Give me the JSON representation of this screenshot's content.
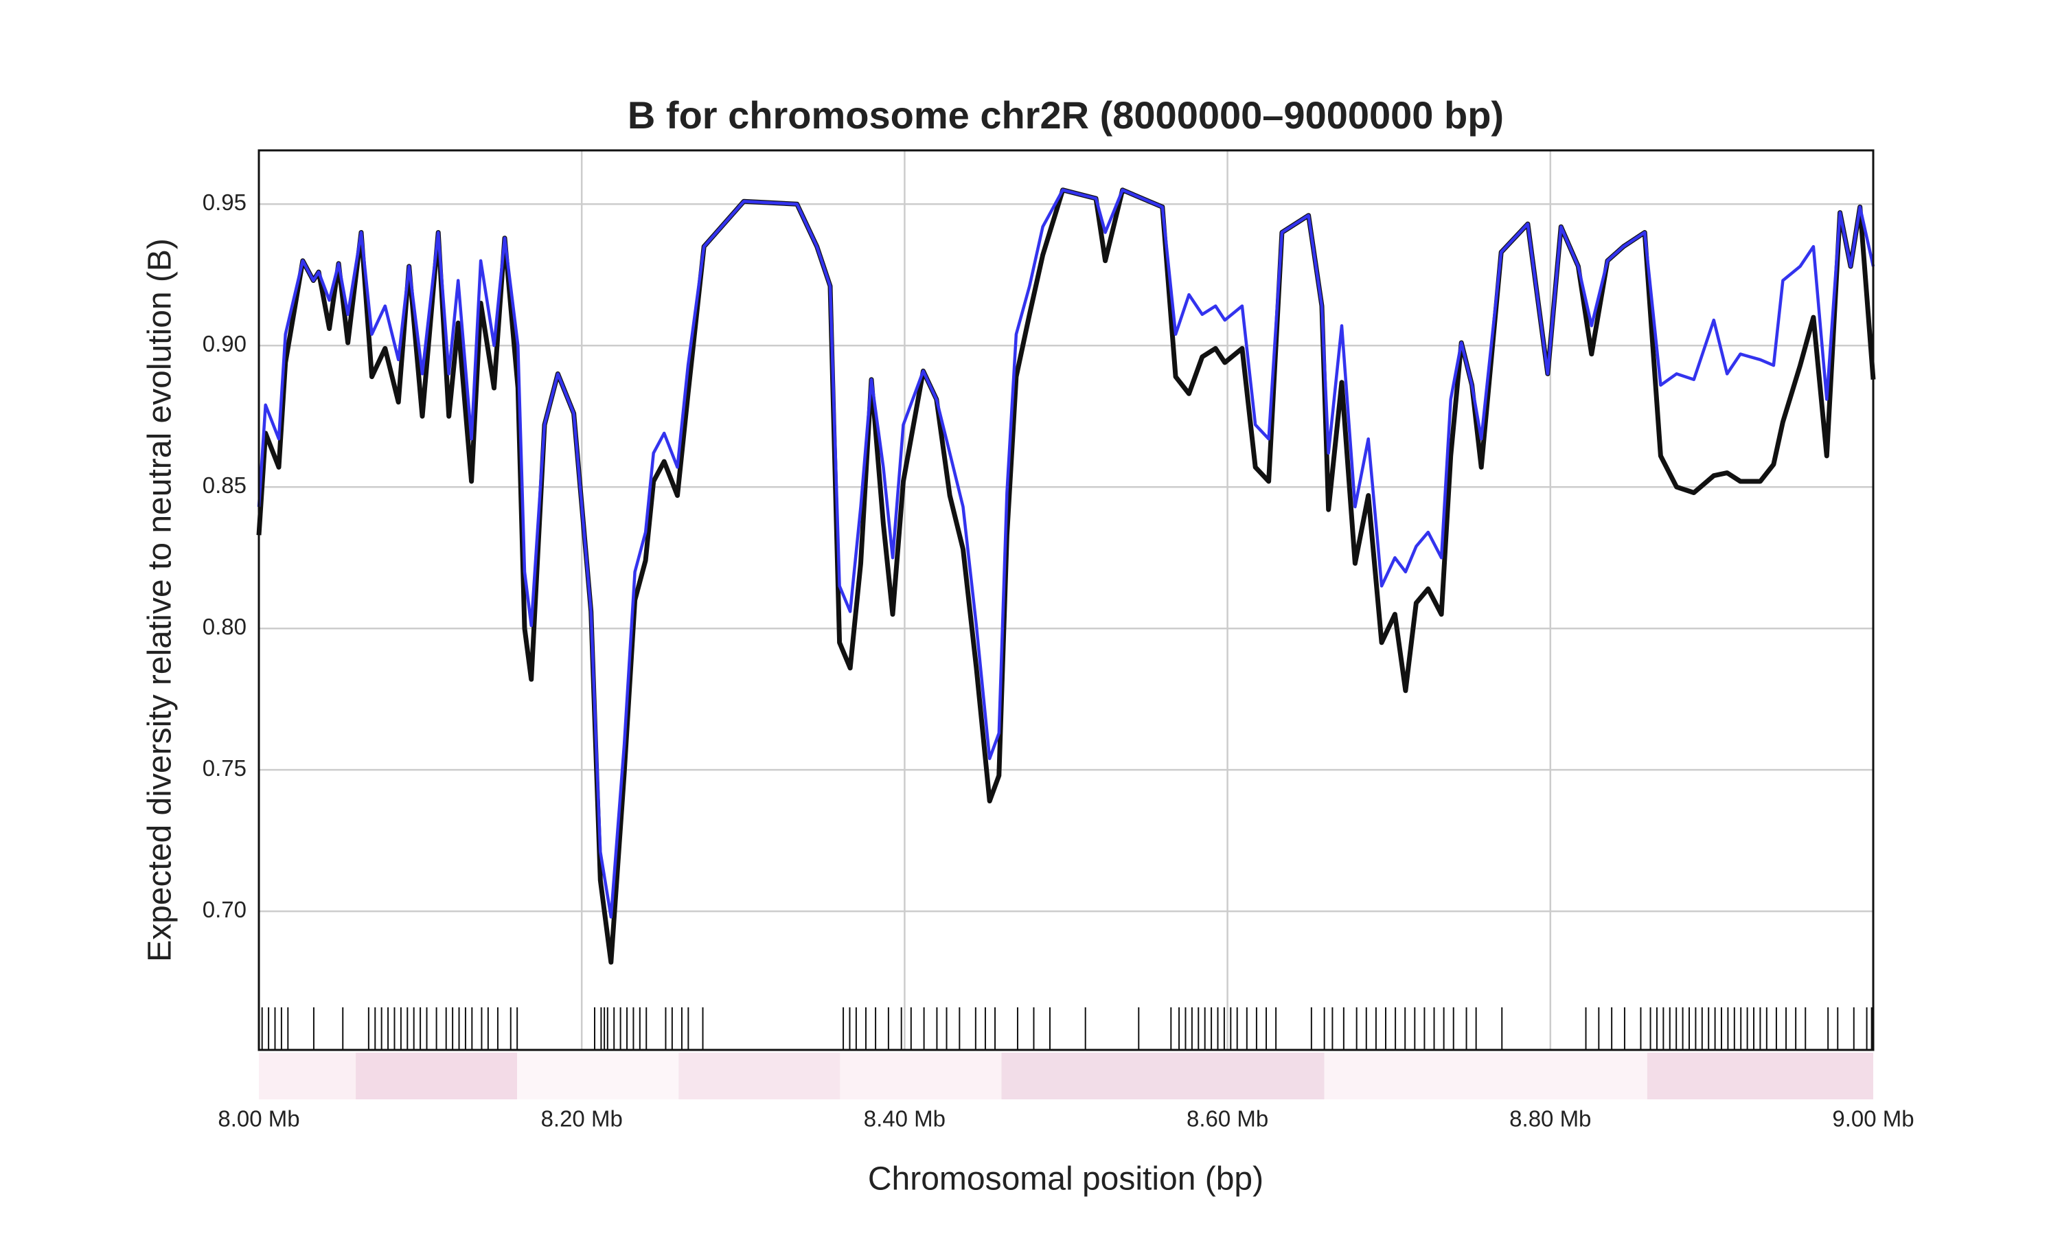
{
  "chart_data": {
    "type": "line",
    "title": "B for chromosome chr2R (8000000–9000000 bp)",
    "xlabel": "Chromosomal position (bp)",
    "ylabel": "Expected diversity relative to neutral evolution (B)",
    "x": [
      8000000,
      8004115,
      8012346,
      8016461,
      8027160,
      8033745,
      8037037,
      8043621,
      8049383,
      8055144,
      8063374,
      8069959,
      8078189,
      8086420,
      8093004,
      8101235,
      8111111,
      8117695,
      8123457,
      8131687,
      8137449,
      8145679,
      8152263,
      8160494,
      8164609,
      8168724,
      8176955,
      8185185,
      8195062,
      8205761,
      8211523,
      8218107,
      8226337,
      8232922,
      8239506,
      8244444,
      8251029,
      8259259,
      8265844,
      8275720,
      8300412,
      8333333,
      8345679,
      8353909,
      8359671,
      8366255,
      8372840,
      8379424,
      8386831,
      8392593,
      8399177,
      8411523,
      8419753,
      8427984,
      8436214,
      8444444,
      8452675,
      8458436,
      8463374,
      8469136,
      8477366,
      8485597,
      8497942,
      8518519,
      8524280,
      8534979,
      8551440,
      8559671,
      8567901,
      8576132,
      8584362,
      8592593,
      8598354,
      8609053,
      8617284,
      8625514,
      8633745,
      8650206,
      8658436,
      8662551,
      8670782,
      8679012,
      8687243,
      8695473,
      8703704,
      8710288,
      8716872,
      8724280,
      8732510,
      8738272,
      8744856,
      8751440,
      8757202,
      8769547,
      8786008,
      8798354,
      8806584,
      8817284,
      8825514,
      8835391,
      8845267,
      8858436,
      8868313,
      8878189,
      8888889,
      8901235,
      8909465,
      8917695,
      8930041,
      8938272,
      8944033,
      8954733,
      8962963,
      8971193,
      8979424,
      8986008,
      8991770,
      9000000
    ],
    "series": [
      {
        "color": "#111111",
        "values": [
          0.833,
          0.869,
          0.857,
          0.894,
          0.93,
          0.923,
          0.926,
          0.906,
          0.929,
          0.901,
          0.94,
          0.889,
          0.899,
          0.88,
          0.928,
          0.875,
          0.94,
          0.875,
          0.908,
          0.852,
          0.915,
          0.885,
          0.938,
          0.885,
          0.8,
          0.782,
          0.872,
          0.89,
          0.876,
          0.806,
          0.711,
          0.682,
          0.749,
          0.81,
          0.824,
          0.852,
          0.859,
          0.847,
          0.883,
          0.935,
          0.951,
          0.95,
          0.935,
          0.921,
          0.795,
          0.786,
          0.823,
          0.888,
          0.837,
          0.805,
          0.852,
          0.891,
          0.881,
          0.847,
          0.828,
          0.786,
          0.739,
          0.748,
          0.833,
          0.889,
          0.911,
          0.932,
          0.955,
          0.952,
          0.93,
          0.955,
          0.951,
          0.949,
          0.889,
          0.883,
          0.896,
          0.899,
          0.894,
          0.899,
          0.857,
          0.852,
          0.94,
          0.946,
          0.914,
          0.842,
          0.887,
          0.823,
          0.847,
          0.795,
          0.805,
          0.778,
          0.809,
          0.814,
          0.805,
          0.861,
          0.901,
          0.886,
          0.857,
          0.933,
          0.943,
          0.89,
          0.942,
          0.928,
          0.897,
          0.93,
          0.935,
          0.94,
          0.861,
          0.85,
          0.848,
          0.854,
          0.855,
          0.852,
          0.852,
          0.858,
          0.873,
          0.893,
          0.91,
          0.861,
          0.947,
          0.928,
          0.949,
          0.888
        ]
      },
      {
        "color": "#3333ee",
        "values": [
          0.843,
          0.879,
          0.867,
          0.904,
          0.93,
          0.923,
          0.926,
          0.916,
          0.929,
          0.911,
          0.94,
          0.904,
          0.914,
          0.895,
          0.928,
          0.89,
          0.94,
          0.89,
          0.923,
          0.867,
          0.93,
          0.9,
          0.938,
          0.9,
          0.82,
          0.801,
          0.872,
          0.89,
          0.876,
          0.806,
          0.721,
          0.698,
          0.759,
          0.82,
          0.834,
          0.862,
          0.869,
          0.857,
          0.893,
          0.935,
          0.951,
          0.95,
          0.935,
          0.921,
          0.815,
          0.806,
          0.843,
          0.888,
          0.857,
          0.825,
          0.872,
          0.891,
          0.881,
          0.862,
          0.843,
          0.801,
          0.754,
          0.763,
          0.848,
          0.904,
          0.921,
          0.942,
          0.955,
          0.952,
          0.94,
          0.955,
          0.951,
          0.949,
          0.904,
          0.918,
          0.911,
          0.914,
          0.909,
          0.914,
          0.872,
          0.867,
          0.94,
          0.946,
          0.914,
          0.862,
          0.907,
          0.843,
          0.867,
          0.815,
          0.825,
          0.82,
          0.829,
          0.834,
          0.825,
          0.881,
          0.901,
          0.886,
          0.867,
          0.933,
          0.943,
          0.89,
          0.942,
          0.928,
          0.907,
          0.93,
          0.935,
          0.94,
          0.886,
          0.89,
          0.888,
          0.909,
          0.89,
          0.897,
          0.895,
          0.893,
          0.923,
          0.928,
          0.935,
          0.881,
          0.947,
          0.928,
          0.949,
          0.928
        ]
      }
    ],
    "xlim": [
      8000000,
      9000000
    ],
    "xticks": [
      {
        "value": 8000000,
        "label": "8.00 Mb"
      },
      {
        "value": 8200000,
        "label": "8.20 Mb"
      },
      {
        "value": 8400000,
        "label": "8.40 Mb"
      },
      {
        "value": 8600000,
        "label": "8.60 Mb"
      },
      {
        "value": 8800000,
        "label": "8.80 Mb"
      },
      {
        "value": 9000000,
        "label": "9.00 Mb"
      }
    ],
    "ylim": [
      0.651,
      0.969
    ],
    "yticks": [
      {
        "value": 0.7,
        "label": "0.70"
      },
      {
        "value": 0.75,
        "label": "0.75"
      },
      {
        "value": 0.8,
        "label": "0.80"
      },
      {
        "value": 0.85,
        "label": "0.85"
      },
      {
        "value": 0.9,
        "label": "0.90"
      },
      {
        "value": 0.95,
        "label": "0.95"
      }
    ],
    "grid": true,
    "rug": [
      8002000,
      8006000,
      8010000,
      8014000,
      8018000,
      8034000,
      8052000,
      8068000,
      8072000,
      8076000,
      8080000,
      8084000,
      8088000,
      8092000,
      8096000,
      8100000,
      8104000,
      8110000,
      8116000,
      8120000,
      8124000,
      8128000,
      8132000,
      8138000,
      8142000,
      8148000,
      8156000,
      8160000,
      8208000,
      8212000,
      8214000,
      8216000,
      8220000,
      8224000,
      8228000,
      8232000,
      8236000,
      8240000,
      8252000,
      8256000,
      8262000,
      8266000,
      8275000,
      8362000,
      8366000,
      8370000,
      8376000,
      8382000,
      8390000,
      8398000,
      8404000,
      8412000,
      8420000,
      8426000,
      8434000,
      8444000,
      8450000,
      8456000,
      8470000,
      8480000,
      8490000,
      8512000,
      8545000,
      8565000,
      8570000,
      8574000,
      8578000,
      8582000,
      8586000,
      8590000,
      8594000,
      8598000,
      8602000,
      8606000,
      8612000,
      8618000,
      8624000,
      8630000,
      8652000,
      8660000,
      8665000,
      8672000,
      8680000,
      8686000,
      8692000,
      8698000,
      8704000,
      8710000,
      8716000,
      8722000,
      8728000,
      8734000,
      8740000,
      8748000,
      8754000,
      8770000,
      8822000,
      8830000,
      8838000,
      8846000,
      8856000,
      8862000,
      8866000,
      8870000,
      8874000,
      8878000,
      8882000,
      8886000,
      8890000,
      8894000,
      8898000,
      8902000,
      8906000,
      8910000,
      8914000,
      8918000,
      8922000,
      8926000,
      8930000,
      8934000,
      8940000,
      8946000,
      8952000,
      8958000,
      8972000,
      8978000,
      8988000,
      8996000,
      8999000
    ],
    "heat": {
      "edges": [
        8000000,
        8060000,
        8160000,
        8260000,
        8360000,
        8460000,
        8660000,
        8860000,
        9000000
      ],
      "colors": [
        "#fbeff4",
        "#f3dbe7",
        "#fdf6f9",
        "#f7e6ee",
        "#fcf2f6",
        "#f2dde8",
        "#fcf3f7",
        "#f3dde8"
      ]
    }
  }
}
